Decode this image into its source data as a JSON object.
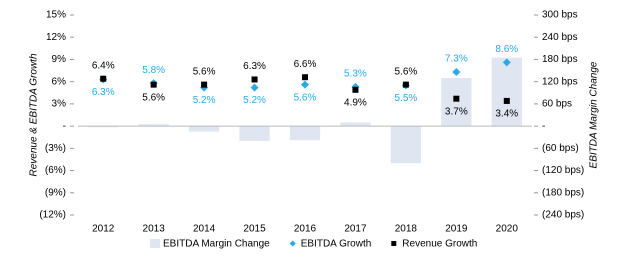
{
  "chart_data": {
    "type": "combo",
    "categories": [
      "2012",
      "2013",
      "2014",
      "2015",
      "2016",
      "2017",
      "2018",
      "2019",
      "2020"
    ],
    "y_label": "Revenue & EBITDA Growth",
    "y2_label": "EBITDA Margin Change",
    "ylim": [
      -12,
      15
    ],
    "yticks": [
      {
        "value": 15,
        "label": "15%"
      },
      {
        "value": 12,
        "label": "12%"
      },
      {
        "value": 9,
        "label": "9%"
      },
      {
        "value": 6,
        "label": "6%"
      },
      {
        "value": 3,
        "label": "3%"
      },
      {
        "value": 0,
        "label": "-"
      },
      {
        "value": -3,
        "label": "(3%)"
      },
      {
        "value": -6,
        "label": "(6%)"
      },
      {
        "value": -9,
        "label": "(9%)"
      },
      {
        "value": -12,
        "label": "(12%)"
      }
    ],
    "y2lim": [
      -240,
      300
    ],
    "y2ticks": [
      {
        "value": 300,
        "label": "300 bps"
      },
      {
        "value": 240,
        "label": "240 bps"
      },
      {
        "value": 180,
        "label": "180 bps"
      },
      {
        "value": 120,
        "label": "120 bps"
      },
      {
        "value": 60,
        "label": "60 bps"
      },
      {
        "value": 0,
        "label": "-"
      },
      {
        "value": -60,
        "label": "(60 bps)"
      },
      {
        "value": -120,
        "label": "(120 bps)"
      },
      {
        "value": -180,
        "label": "(180 bps)"
      },
      {
        "value": -240,
        "label": "(240 bps)"
      }
    ],
    "series": [
      {
        "name": "EBITDA Margin Change",
        "type": "bar",
        "axis": "y2",
        "color": "#dfe5f1",
        "values": [
          -3,
          5,
          -15,
          -40,
          -38,
          10,
          -100,
          130,
          185
        ]
      },
      {
        "name": "EBITDA Growth",
        "type": "scatter",
        "marker": "diamond",
        "color": "#29abe2",
        "values": [
          6.3,
          5.8,
          5.2,
          5.2,
          5.6,
          5.3,
          5.5,
          7.3,
          8.6
        ],
        "value_labels": [
          "6.3%",
          "5.8%",
          "5.2%",
          "5.2%",
          "5.6%",
          "5.3%",
          "5.5%",
          "7.3%",
          "8.6%"
        ]
      },
      {
        "name": "Revenue Growth",
        "type": "scatter",
        "marker": "square",
        "color": "#000000",
        "values": [
          6.4,
          5.6,
          5.6,
          6.3,
          6.6,
          4.9,
          5.6,
          3.7,
          3.4
        ],
        "value_labels": [
          "6.4%",
          "5.6%",
          "5.6%",
          "6.3%",
          "6.6%",
          "4.9%",
          "5.6%",
          "3.7%",
          "3.4%"
        ]
      }
    ]
  }
}
